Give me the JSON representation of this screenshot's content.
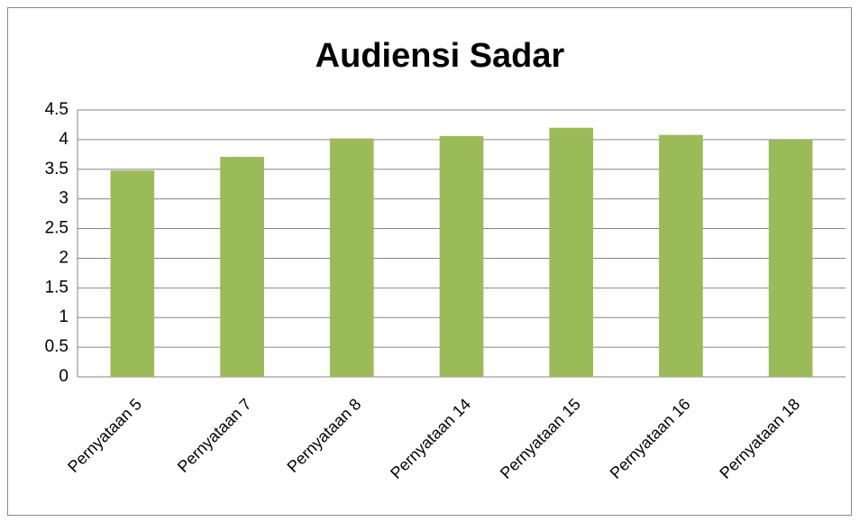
{
  "chart_data": {
    "type": "bar",
    "title": "Audiensi Sadar",
    "categories": [
      "Pernyataan 5",
      "Pernyataan 7",
      "Pernyataan 8",
      "Pernyataan 14",
      "Pernyataan 15",
      "Pernyataan 16",
      "Pernyataan 18"
    ],
    "values": [
      3.48,
      3.71,
      4.02,
      4.06,
      4.2,
      4.08,
      4.0
    ],
    "color": "#9bbb59",
    "ylim": [
      0,
      4.5
    ],
    "yticks": [
      0,
      0.5,
      1,
      1.5,
      2,
      2.5,
      3,
      3.5,
      4,
      4.5
    ],
    "grid": true
  }
}
